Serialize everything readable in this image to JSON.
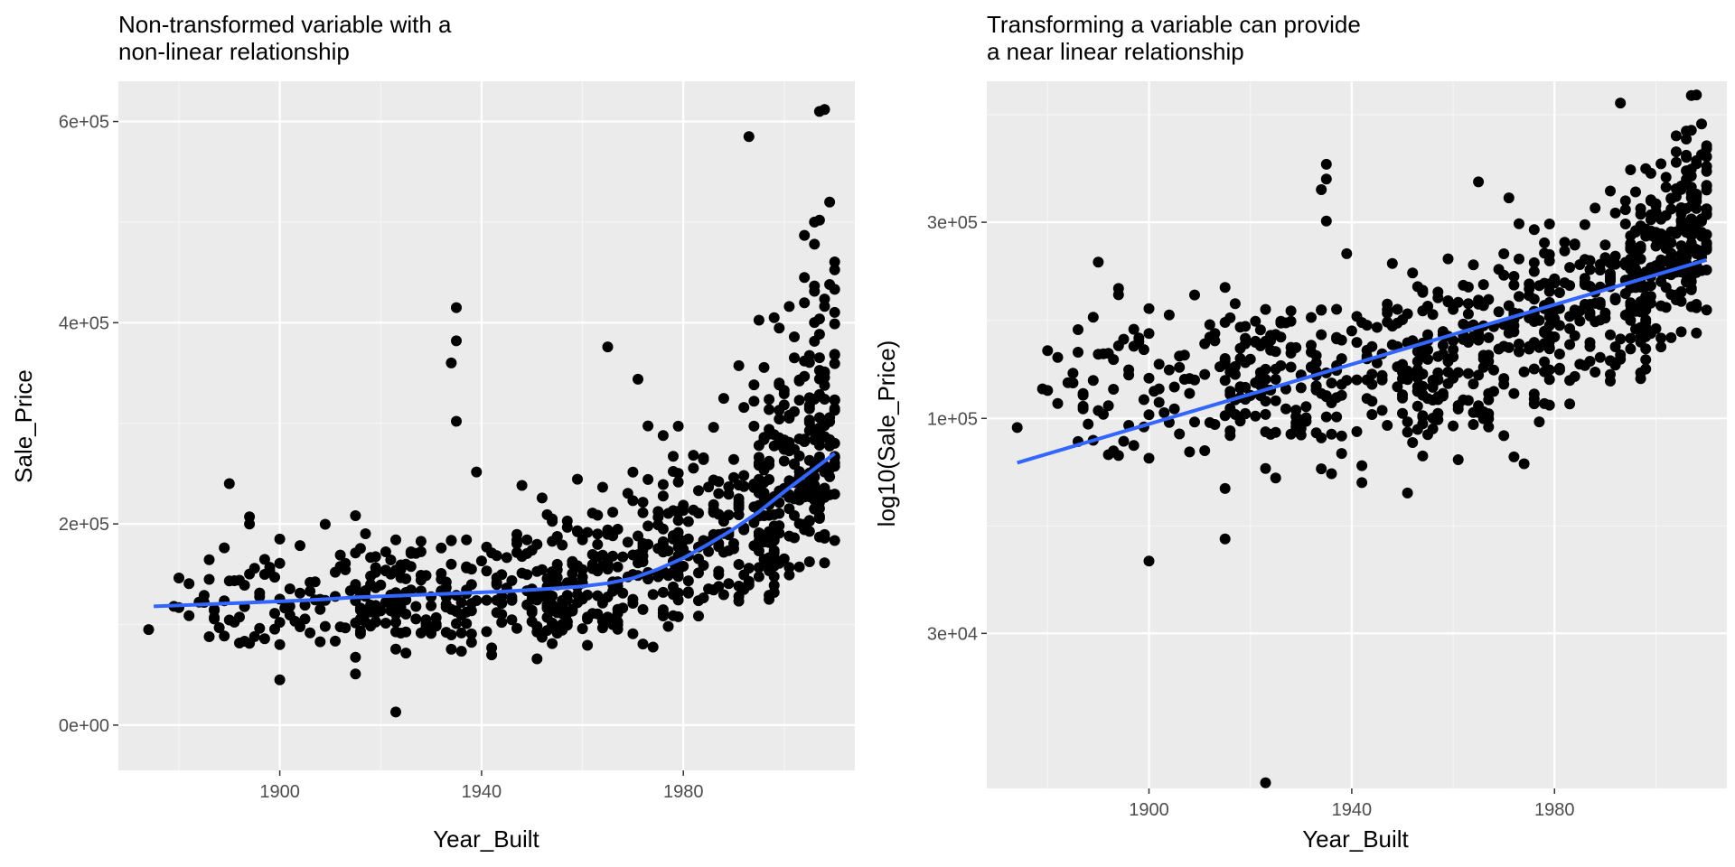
{
  "colors": {
    "panel_bg": "#ebebeb",
    "grid_major": "#ffffff",
    "grid_minor": "#f5f5f5",
    "points": "#000000",
    "smooth_line": "#3366ff",
    "tick_text": "#4d4d4d"
  },
  "chart_data": [
    {
      "type": "scatter",
      "title_lines": [
        "Non-transformed variable with a",
        "non-linear relationship"
      ],
      "xlabel": "Year_Built",
      "ylabel": "Sale_Price",
      "xlim": [
        1868,
        2014
      ],
      "ylim": [
        -45000,
        640000
      ],
      "x_ticks": [
        1900,
        1940,
        1980
      ],
      "x_tick_labels": [
        "1900",
        "1940",
        "1980"
      ],
      "y_ticks": [
        0,
        200000,
        400000,
        600000
      ],
      "y_tick_labels": [
        "0e+00",
        "2e+05",
        "4e+05",
        "6e+05"
      ],
      "y_scale": "linear",
      "grid": true,
      "smooth_line": {
        "method": "loess",
        "x": [
          1875,
          1885,
          1895,
          1905,
          1915,
          1925,
          1935,
          1945,
          1955,
          1960,
          1965,
          1970,
          1975,
          1980,
          1985,
          1990,
          1995,
          2000,
          2005,
          2010
        ],
        "y": [
          118000,
          120000,
          122000,
          124000,
          127000,
          129000,
          131000,
          133000,
          136000,
          138000,
          141000,
          146000,
          155000,
          166000,
          180000,
          195000,
          212000,
          232000,
          251000,
          270000
        ]
      },
      "points_description": "Sale_Price vs Year_Built for Ames housing data, including outliers at (1874, 95000), (1890, 240000), (1935, 415000), (1993, 585000), (2007, 610000), (1923, 13000)"
    },
    {
      "type": "scatter",
      "title_lines": [
        "Transforming a variable can provide",
        "a near linear relationship"
      ],
      "xlabel": "Year_Built",
      "ylabel": "log10(Sale_Price)",
      "xlim": [
        1868,
        2014
      ],
      "ylim_log10": [
        4.1,
        5.82
      ],
      "x_ticks": [
        1900,
        1940,
        1980
      ],
      "x_tick_labels": [
        "1900",
        "1940",
        "1980"
      ],
      "y_ticks": [
        30000,
        100000,
        300000
      ],
      "y_tick_labels": [
        "3e+04",
        "1e+05",
        "3e+05"
      ],
      "y_scale": "log10",
      "grid": true,
      "smooth_line": {
        "method": "lm",
        "x": [
          1874,
          2010
        ],
        "y": [
          78000,
          243000
        ]
      }
    }
  ]
}
